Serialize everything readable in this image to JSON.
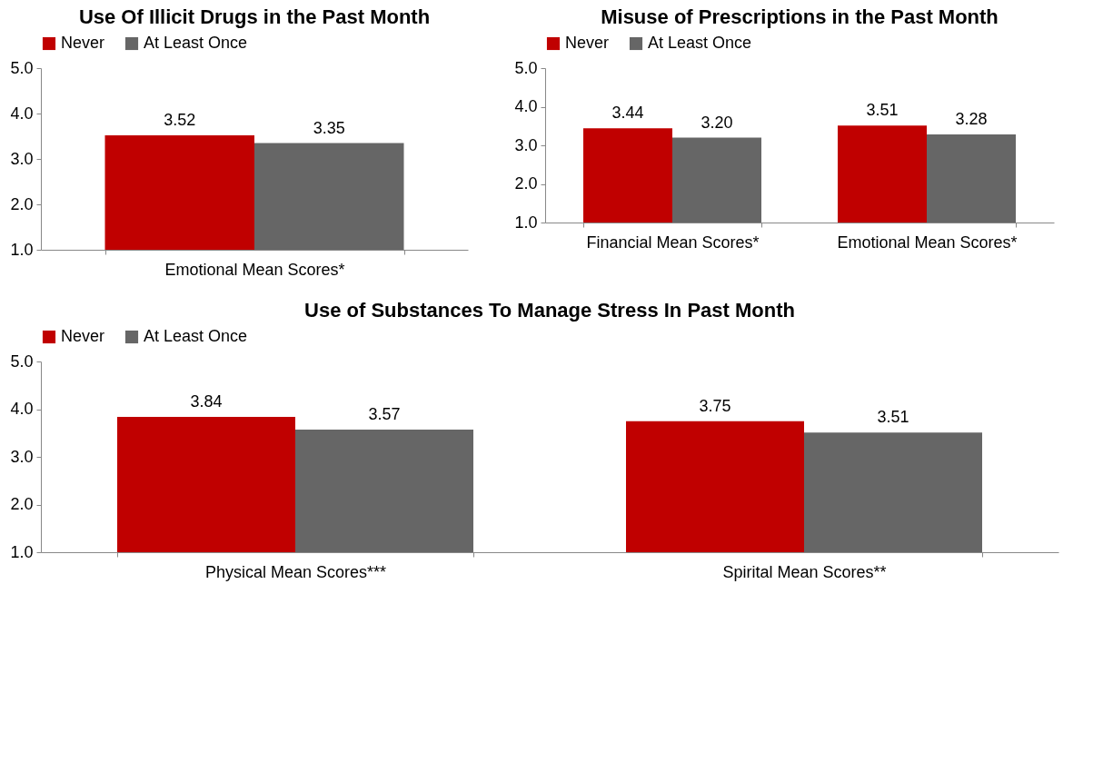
{
  "chart_data": [
    {
      "type": "bar",
      "title": "Use Of Illicit Drugs in the Past Month",
      "categories": [
        "Emotional Mean Scores*"
      ],
      "series": [
        {
          "name": "Never",
          "color": "#c00000",
          "values": [
            3.52
          ],
          "value_labels": [
            "3.52"
          ]
        },
        {
          "name": "At Least Once",
          "color": "#666666",
          "values": [
            3.35
          ],
          "value_labels": [
            "3.35"
          ]
        }
      ],
      "ylim": [
        1,
        5
      ],
      "yticks": [
        {
          "value": 1,
          "label": "1.0"
        },
        {
          "value": 2,
          "label": "2.0"
        },
        {
          "value": 3,
          "label": "3.0"
        },
        {
          "value": 4,
          "label": "4.0"
        },
        {
          "value": 5,
          "label": "5.0"
        }
      ],
      "legend": "top",
      "grid": false
    },
    {
      "type": "bar",
      "title": "Misuse of Prescriptions in the Past Month",
      "categories": [
        "Financial Mean Scores*",
        "Emotional Mean Scores*"
      ],
      "series": [
        {
          "name": "Never",
          "color": "#c00000",
          "values": [
            3.44,
            3.51
          ],
          "value_labels": [
            "3.44",
            "3.51"
          ]
        },
        {
          "name": "At Least Once",
          "color": "#666666",
          "values": [
            3.2,
            3.28
          ],
          "value_labels": [
            "3.20",
            "3.28"
          ]
        }
      ],
      "ylim": [
        1,
        5
      ],
      "yticks": [
        {
          "value": 1,
          "label": "1.0"
        },
        {
          "value": 2,
          "label": "2.0"
        },
        {
          "value": 3,
          "label": "3.0"
        },
        {
          "value": 4,
          "label": "4.0"
        },
        {
          "value": 5,
          "label": "5.0"
        }
      ],
      "legend": "top",
      "grid": false
    },
    {
      "type": "bar",
      "title": "Use of Substances To Manage Stress In Past Month",
      "categories": [
        "Physical Mean Scores***",
        "Spirital Mean Scores**"
      ],
      "series": [
        {
          "name": "Never",
          "color": "#c00000",
          "values": [
            3.84,
            3.75
          ],
          "value_labels": [
            "3.84",
            "3.75"
          ]
        },
        {
          "name": "At Least Once",
          "color": "#666666",
          "values": [
            3.57,
            3.51
          ],
          "value_labels": [
            "3.57",
            "3.51"
          ]
        }
      ],
      "ylim": [
        1,
        5
      ],
      "yticks": [
        {
          "value": 1,
          "label": "1.0"
        },
        {
          "value": 2,
          "label": "2.0"
        },
        {
          "value": 3,
          "label": "3.0"
        },
        {
          "value": 4,
          "label": "4.0"
        },
        {
          "value": 5,
          "label": "5.0"
        }
      ],
      "legend": "top",
      "grid": false
    }
  ]
}
